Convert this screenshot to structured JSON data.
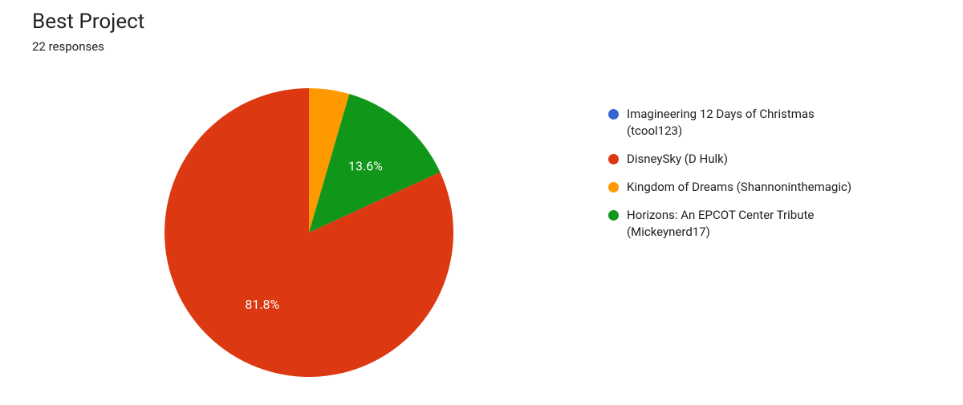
{
  "header": {
    "title": "Best Project",
    "subtitle": "22 responses"
  },
  "chart": {
    "type": "pie",
    "background_color": "#ffffff",
    "radius": 180,
    "label_fontsize": 16,
    "label_color": "#ffffff",
    "slices": [
      {
        "label": "Imagineering 12 Days of Christmas (tcool123)",
        "value": 0,
        "percent": 0,
        "color": "#3366cc",
        "show_label": false
      },
      {
        "label": "DisneySky (D Hulk)",
        "value": 18,
        "percent": 81.8,
        "color": "#dc3912",
        "show_label": true,
        "display_percent": "81.8%"
      },
      {
        "label": "Kingdom of Dreams (Shannoninthemagic)",
        "value": 1,
        "percent": 4.5,
        "color": "#ff9900",
        "show_label": false
      },
      {
        "label": "Horizons: An EPCOT Center Tribute (Mickeynerd17)",
        "value": 3,
        "percent": 13.6,
        "color": "#109618",
        "show_label": true,
        "display_percent": "13.6%"
      }
    ]
  },
  "legend": {
    "fontsize": 15,
    "text_color": "#202124",
    "swatch_size": 13
  }
}
